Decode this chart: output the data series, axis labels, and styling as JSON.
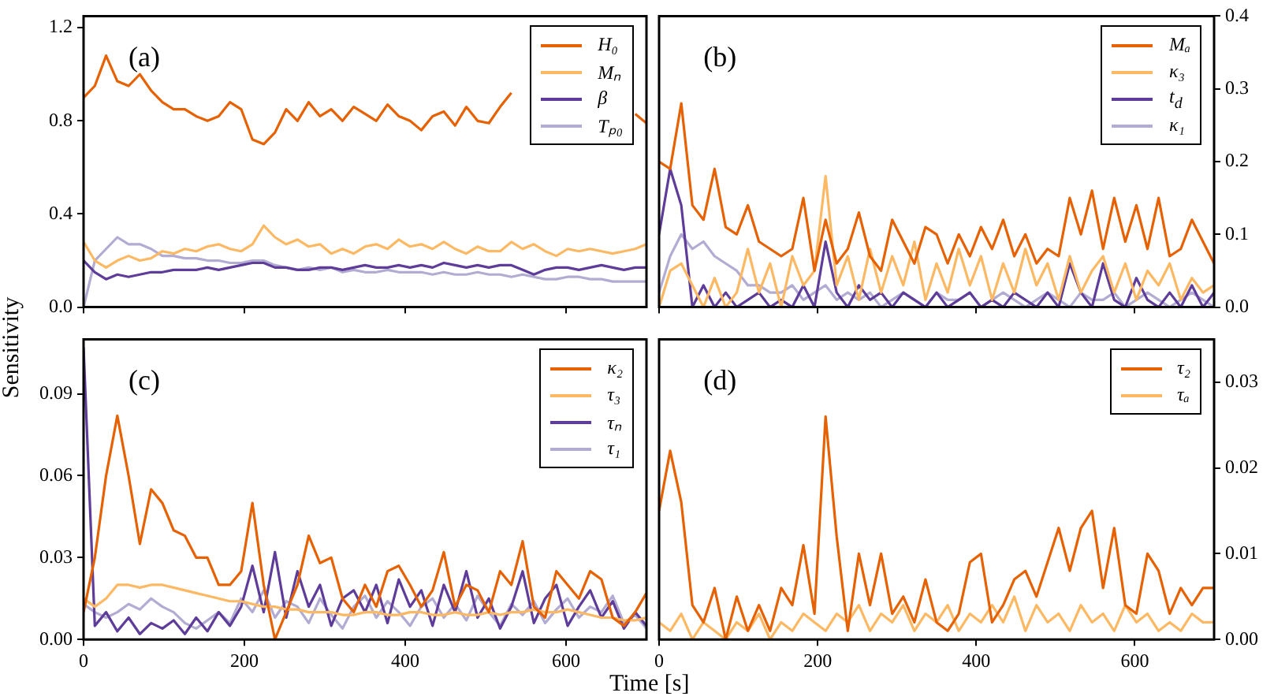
{
  "chart_data": [
    {
      "type": "line",
      "ylabel": "Sensitivity",
      "annotations": [
        "(a)"
      ],
      "legend": "top right",
      "tick_labels": "y",
      "x": [
        0,
        14,
        28,
        42,
        56,
        70,
        84,
        98,
        112,
        126,
        140,
        154,
        168,
        182,
        196,
        210,
        224,
        238,
        252,
        266,
        280,
        294,
        308,
        322,
        336,
        350,
        364,
        378,
        392,
        406,
        420,
        434,
        448,
        462,
        476,
        490,
        504,
        518,
        532,
        546,
        560,
        574,
        588,
        602,
        616,
        630,
        644,
        658,
        672,
        686,
        700
      ],
      "xlim": [
        0,
        700
      ],
      "xticks": [
        {
          "value": 0,
          "label": null
        },
        {
          "value": 200,
          "label": null
        },
        {
          "value": 400,
          "label": null
        },
        {
          "value": 600,
          "label": null
        }
      ],
      "ylim": [
        0,
        1.25
      ],
      "yticks": [
        {
          "value": 0,
          "label": "0.0"
        },
        {
          "value": 0.4,
          "label": "0.4"
        },
        {
          "value": 0.8,
          "label": "0.8"
        },
        {
          "value": 1.2,
          "label": "1.2"
        }
      ],
      "series": [
        {
          "name": "H₀",
          "color": "#e66101",
          "values": [
            0.9,
            0.95,
            1.08,
            0.97,
            0.95,
            1.0,
            0.93,
            0.88,
            0.85,
            0.85,
            0.82,
            0.8,
            0.82,
            0.88,
            0.85,
            0.72,
            0.7,
            0.75,
            0.85,
            0.8,
            0.88,
            0.82,
            0.85,
            0.8,
            0.86,
            0.83,
            0.8,
            0.87,
            0.82,
            0.8,
            0.76,
            0.82,
            0.84,
            0.78,
            0.86,
            0.8,
            0.79,
            0.86,
            0.92,
            null,
            null,
            null,
            null,
            null,
            null,
            null,
            null,
            null,
            null,
            0.83,
            0.79
          ]
        },
        {
          "name": "Mₙ",
          "color": "#fdb863",
          "values": [
            0.28,
            0.2,
            0.17,
            0.2,
            0.22,
            0.2,
            0.21,
            0.24,
            0.23,
            0.25,
            0.24,
            0.26,
            0.27,
            0.25,
            0.24,
            0.27,
            0.35,
            0.3,
            0.27,
            0.29,
            0.26,
            0.27,
            0.23,
            0.25,
            0.23,
            0.26,
            0.27,
            0.25,
            0.29,
            0.26,
            0.27,
            0.25,
            0.28,
            0.25,
            0.23,
            0.26,
            0.24,
            0.24,
            0.28,
            0.25,
            0.27,
            0.24,
            0.22,
            0.25,
            0.24,
            0.25,
            0.24,
            0.23,
            0.24,
            0.25,
            0.27
          ]
        },
        {
          "name": "β",
          "color": "#5e3c99",
          "values": [
            0.2,
            0.15,
            0.12,
            0.14,
            0.13,
            0.14,
            0.15,
            0.15,
            0.16,
            0.16,
            0.16,
            0.17,
            0.16,
            0.17,
            0.18,
            0.19,
            0.19,
            0.17,
            0.17,
            0.16,
            0.16,
            0.17,
            0.17,
            0.16,
            0.17,
            0.18,
            0.17,
            0.17,
            0.18,
            0.17,
            0.18,
            0.17,
            0.19,
            0.18,
            0.17,
            0.18,
            0.17,
            0.18,
            0.18,
            0.16,
            0.14,
            0.16,
            0.17,
            0.17,
            0.16,
            0.17,
            0.18,
            0.17,
            0.16,
            0.17,
            0.17
          ]
        },
        {
          "name": "Tₚ₀",
          "color": "#b2abd2",
          "values": [
            0.0,
            0.2,
            0.25,
            0.3,
            0.27,
            0.27,
            0.25,
            0.22,
            0.22,
            0.21,
            0.21,
            0.2,
            0.2,
            0.19,
            0.19,
            0.2,
            0.2,
            0.18,
            0.17,
            0.16,
            0.17,
            0.16,
            0.17,
            0.15,
            0.16,
            0.15,
            0.15,
            0.16,
            0.15,
            0.15,
            0.15,
            0.14,
            0.15,
            0.14,
            0.14,
            0.15,
            0.14,
            0.14,
            0.13,
            0.14,
            0.13,
            0.12,
            0.12,
            0.13,
            0.13,
            0.12,
            0.12,
            0.11,
            0.11,
            0.11,
            0.11
          ]
        }
      ]
    },
    {
      "type": "line",
      "annotations": [
        "(b)"
      ],
      "legend": "top right",
      "tick_labels": "y",
      "x": [
        0,
        14,
        28,
        42,
        56,
        70,
        84,
        98,
        112,
        126,
        140,
        154,
        168,
        182,
        196,
        210,
        224,
        238,
        252,
        266,
        280,
        294,
        308,
        322,
        336,
        350,
        364,
        378,
        392,
        406,
        420,
        434,
        448,
        462,
        476,
        490,
        504,
        518,
        532,
        546,
        560,
        574,
        588,
        602,
        616,
        630,
        644,
        658,
        672,
        686,
        700
      ],
      "xlim": [
        0,
        700
      ],
      "xticks": [
        {
          "value": 0,
          "label": null
        },
        {
          "value": 200,
          "label": null
        },
        {
          "value": 400,
          "label": null
        },
        {
          "value": 600,
          "label": null
        }
      ],
      "y2lim": [
        0,
        0.4
      ],
      "y2ticks": [
        {
          "value": 0,
          "label": "0.0"
        },
        0.1,
        0.2,
        0.3,
        0.4
      ],
      "series": [
        {
          "name": "Mₐ",
          "color": "#e66101",
          "axis": "y2",
          "values": [
            0.2,
            0.19,
            0.28,
            0.14,
            0.12,
            0.19,
            0.11,
            0.1,
            0.14,
            0.09,
            0.08,
            0.07,
            0.08,
            0.15,
            0.05,
            0.12,
            0.06,
            0.08,
            0.13,
            0.07,
            0.05,
            0.12,
            0.09,
            0.06,
            0.11,
            0.1,
            0.06,
            0.1,
            0.07,
            0.11,
            0.08,
            0.12,
            0.07,
            0.1,
            0.06,
            0.08,
            0.07,
            0.15,
            0.1,
            0.16,
            0.08,
            0.15,
            0.09,
            0.14,
            0.08,
            0.15,
            0.07,
            0.08,
            0.12,
            0.09,
            0.06
          ]
        },
        {
          "name": "κ₃",
          "color": "#fdb863",
          "axis": "y2",
          "values": [
            0.0,
            0.05,
            0.06,
            0.03,
            0.0,
            0.04,
            0.0,
            0.02,
            0.08,
            0.02,
            0.06,
            0.0,
            0.07,
            0.03,
            0.05,
            0.18,
            0.03,
            0.07,
            0.01,
            0.08,
            0.02,
            0.07,
            0.03,
            0.09,
            0.01,
            0.06,
            0.02,
            0.08,
            0.03,
            0.07,
            0.01,
            0.06,
            0.02,
            0.08,
            0.03,
            0.06,
            0.01,
            0.07,
            0.02,
            0.05,
            0.07,
            0.02,
            0.06,
            0.01,
            0.05,
            0.03,
            0.06,
            0.01,
            0.04,
            0.02,
            0.03
          ]
        },
        {
          "name": "t$_{d}$",
          "color": "#5e3c99",
          "axis": "y2",
          "values": [
            0.1,
            0.19,
            0.14,
            0.0,
            0.03,
            0.0,
            0.02,
            0.0,
            0.01,
            0.02,
            0.0,
            0.01,
            0.0,
            0.03,
            0.0,
            0.09,
            0.02,
            0.0,
            0.03,
            0.01,
            0.02,
            0.0,
            0.02,
            0.01,
            0.0,
            0.02,
            0.0,
            0.01,
            0.02,
            0.0,
            0.01,
            0.0,
            0.02,
            0.01,
            0.0,
            0.02,
            0.0,
            0.06,
            0.02,
            0.0,
            0.06,
            0.01,
            0.0,
            0.04,
            0.01,
            0.0,
            0.02,
            0.0,
            0.03,
            0.0,
            0.02
          ]
        },
        {
          "name": "κ₁",
          "color": "#b2abd2",
          "axis": "y2",
          "values": [
            0.02,
            0.07,
            0.1,
            0.08,
            0.09,
            0.07,
            0.06,
            0.05,
            0.03,
            0.03,
            0.02,
            0.02,
            0.03,
            0.01,
            0.02,
            0.03,
            0.01,
            0.02,
            0.01,
            0.02,
            0.0,
            0.01,
            0.02,
            0.01,
            0.0,
            0.02,
            0.01,
            0.01,
            0.02,
            0.0,
            0.01,
            0.02,
            0.01,
            0.0,
            0.01,
            0.02,
            0.01,
            0.0,
            0.02,
            0.01,
            0.01,
            0.02,
            0.0,
            0.01,
            0.02,
            0.01,
            0.0,
            0.01,
            0.02,
            0.01,
            0.0
          ]
        }
      ]
    },
    {
      "type": "line",
      "xlabel": "Time [s]",
      "annotations": [
        "(c)"
      ],
      "legend": "top right",
      "x": [
        0,
        14,
        28,
        42,
        56,
        70,
        84,
        98,
        112,
        126,
        140,
        154,
        168,
        182,
        196,
        210,
        224,
        238,
        252,
        266,
        280,
        294,
        308,
        322,
        336,
        350,
        364,
        378,
        392,
        406,
        420,
        434,
        448,
        462,
        476,
        490,
        504,
        518,
        532,
        546,
        560,
        574,
        588,
        602,
        616,
        630,
        644,
        658,
        672,
        686,
        700
      ],
      "xlim": [
        0,
        700
      ],
      "xticks": [
        0,
        200,
        400,
        600
      ],
      "ylim": [
        0,
        0.11
      ],
      "yticks": [
        {
          "value": 0,
          "label": "0.00"
        },
        0.03,
        0.06,
        0.09
      ],
      "series": [
        {
          "name": "κ₂",
          "color": "#e66101",
          "values": [
            0.01,
            0.03,
            0.06,
            0.082,
            0.06,
            0.035,
            0.055,
            0.05,
            0.04,
            0.038,
            0.03,
            0.03,
            0.02,
            0.02,
            0.025,
            0.05,
            0.02,
            0.0,
            0.01,
            0.02,
            0.038,
            0.028,
            0.03,
            0.015,
            0.01,
            0.02,
            0.012,
            0.025,
            0.027,
            0.02,
            0.012,
            0.018,
            0.032,
            0.012,
            0.02,
            0.018,
            0.01,
            0.025,
            0.02,
            0.036,
            0.012,
            0.008,
            0.025,
            0.02,
            0.015,
            0.025,
            0.022,
            0.008,
            0.005,
            0.01,
            0.017
          ]
        },
        {
          "name": "τ₃",
          "color": "#fdb863",
          "values": [
            0.015,
            0.012,
            0.015,
            0.02,
            0.02,
            0.019,
            0.02,
            0.02,
            0.019,
            0.018,
            0.017,
            0.016,
            0.015,
            0.014,
            0.014,
            0.013,
            0.012,
            0.012,
            0.011,
            0.011,
            0.01,
            0.01,
            0.01,
            0.009,
            0.009,
            0.01,
            0.01,
            0.009,
            0.009,
            0.01,
            0.01,
            0.009,
            0.009,
            0.01,
            0.009,
            0.009,
            0.01,
            0.009,
            0.01,
            0.01,
            0.011,
            0.01,
            0.01,
            0.011,
            0.01,
            0.009,
            0.008,
            0.008,
            0.007,
            0.007,
            0.008
          ]
        },
        {
          "name": "τₙ",
          "color": "#5e3c99",
          "values": [
            0.107,
            0.005,
            0.01,
            0.003,
            0.008,
            0.002,
            0.006,
            0.004,
            0.007,
            0.002,
            0.008,
            0.003,
            0.01,
            0.005,
            0.012,
            0.027,
            0.01,
            0.032,
            0.008,
            0.025,
            0.012,
            0.02,
            0.005,
            0.015,
            0.018,
            0.01,
            0.02,
            0.006,
            0.022,
            0.012,
            0.018,
            0.005,
            0.02,
            0.01,
            0.025,
            0.008,
            0.015,
            0.004,
            0.012,
            0.025,
            0.006,
            0.015,
            0.02,
            0.005,
            0.012,
            0.018,
            0.008,
            0.014,
            0.004,
            0.01,
            0.005
          ]
        },
        {
          "name": "τ₁",
          "color": "#b2abd2",
          "values": [
            0.013,
            0.01,
            0.008,
            0.01,
            0.013,
            0.011,
            0.015,
            0.012,
            0.01,
            0.006,
            0.004,
            0.007,
            0.01,
            0.006,
            0.015,
            0.01,
            0.018,
            0.008,
            0.014,
            0.012,
            0.006,
            0.015,
            0.009,
            0.004,
            0.012,
            0.016,
            0.008,
            0.014,
            0.01,
            0.005,
            0.012,
            0.015,
            0.008,
            0.013,
            0.007,
            0.016,
            0.01,
            0.005,
            0.013,
            0.009,
            0.014,
            0.006,
            0.011,
            0.015,
            0.008,
            0.012,
            0.01,
            0.016,
            0.006,
            0.009,
            0.004
          ]
        }
      ]
    },
    {
      "type": "line",
      "annotations": [
        "(d)"
      ],
      "legend": "top right",
      "x": [
        0,
        14,
        28,
        42,
        56,
        70,
        84,
        98,
        112,
        126,
        140,
        154,
        168,
        182,
        196,
        210,
        224,
        238,
        252,
        266,
        280,
        294,
        308,
        322,
        336,
        350,
        364,
        378,
        392,
        406,
        420,
        434,
        448,
        462,
        476,
        490,
        504,
        518,
        532,
        546,
        560,
        574,
        588,
        602,
        616,
        630,
        644,
        658,
        672,
        686,
        700
      ],
      "xlim": [
        0,
        700
      ],
      "xticks": [
        0,
        200,
        400,
        600
      ],
      "y2lim": [
        0,
        0.035
      ],
      "y2ticks": [
        {
          "value": 0,
          "label": "0.00"
        },
        0.01,
        0.02,
        0.03
      ],
      "series": [
        {
          "name": "τ₂",
          "color": "#e66101",
          "axis": "y2",
          "values": [
            0.015,
            0.022,
            0.016,
            0.004,
            0.002,
            0.006,
            0.0,
            0.005,
            0.001,
            0.004,
            0.001,
            0.006,
            0.004,
            0.011,
            0.003,
            0.026,
            0.012,
            0.001,
            0.01,
            0.004,
            0.01,
            0.003,
            0.005,
            0.002,
            0.007,
            0.002,
            0.001,
            0.003,
            0.009,
            0.01,
            0.002,
            0.004,
            0.007,
            0.008,
            0.005,
            0.009,
            0.013,
            0.008,
            0.013,
            0.015,
            0.006,
            0.013,
            0.004,
            0.003,
            0.01,
            0.008,
            0.003,
            0.006,
            0.004,
            0.006,
            0.006
          ]
        },
        {
          "name": "τₐ",
          "color": "#fdb863",
          "axis": "y2",
          "values": [
            0.002,
            0.001,
            0.003,
            0.0,
            0.002,
            0.001,
            0.0,
            0.002,
            0.001,
            0.003,
            0.0,
            0.002,
            0.001,
            0.003,
            0.002,
            0.001,
            0.003,
            0.002,
            0.004,
            0.001,
            0.003,
            0.002,
            0.004,
            0.001,
            0.003,
            0.002,
            0.004,
            0.001,
            0.003,
            0.002,
            0.004,
            0.002,
            0.005,
            0.001,
            0.004,
            0.002,
            0.003,
            0.001,
            0.004,
            0.002,
            0.003,
            0.001,
            0.004,
            0.002,
            0.003,
            0.001,
            0.002,
            0.001,
            0.003,
            0.002,
            0.002
          ]
        }
      ]
    }
  ]
}
